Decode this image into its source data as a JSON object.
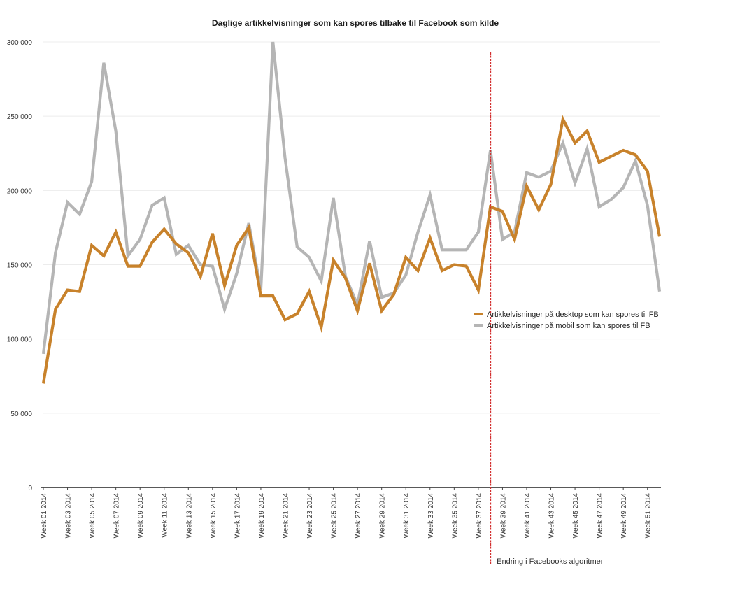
{
  "chart_data": {
    "type": "line",
    "title": "Daglige artikkelvisninger som kan spores tilbake til Facebook som kilde",
    "xlabel": "",
    "ylabel": "",
    "ylim": [
      0,
      300000
    ],
    "yticks": [
      0,
      50000,
      100000,
      150000,
      200000,
      250000,
      300000
    ],
    "ytick_labels": [
      "0",
      "50 000",
      "100 000",
      "150 000",
      "200 000",
      "250 000",
      "300 000"
    ],
    "x": [
      1,
      2,
      3,
      4,
      5,
      6,
      7,
      8,
      9,
      10,
      11,
      12,
      13,
      14,
      15,
      16,
      17,
      18,
      19,
      20,
      21,
      22,
      23,
      24,
      25,
      26,
      27,
      28,
      29,
      30,
      31,
      32,
      33,
      34,
      35,
      36,
      37,
      38,
      39,
      40,
      41,
      42,
      43,
      44,
      45,
      46,
      47,
      48,
      49,
      50,
      51,
      52
    ],
    "xtick_labels": [
      "Week 01 2014",
      "Week 03 2014",
      "Week 05 2014",
      "Week 07 2014",
      "Week 09 2014",
      "Week 11 2014",
      "Week 13 2014",
      "Week 15 2014",
      "Week 17 2014",
      "Week 19 2014",
      "Week 21 2014",
      "Week 23 2014",
      "Week 25 2014",
      "Week 27 2014",
      "Week 29 2014",
      "Week 31 2014",
      "Week 33 2014",
      "Week 35 2014",
      "Week 37 2014",
      "Week 39 2014",
      "Week 41 2014",
      "Week 43 2014",
      "Week 45 2014",
      "Week 47 2014",
      "Week 49 2014",
      "Week 51 2014"
    ],
    "xtick_weeks": [
      1,
      3,
      5,
      7,
      9,
      11,
      13,
      15,
      17,
      19,
      21,
      23,
      25,
      27,
      29,
      31,
      33,
      35,
      37,
      39,
      41,
      43,
      45,
      47,
      49,
      51
    ],
    "series": [
      {
        "name": "Artikkelvisninger på desktop som kan spores til FB",
        "color": "#c8822b",
        "values": [
          70000,
          120000,
          133000,
          132000,
          163000,
          156000,
          172000,
          149000,
          149000,
          165000,
          174000,
          164000,
          158000,
          142000,
          171000,
          136000,
          163000,
          175000,
          129000,
          129000,
          113000,
          117000,
          132000,
          108000,
          153000,
          141000,
          119000,
          151000,
          119000,
          130000,
          155000,
          146000,
          168000,
          146000,
          150000,
          149000,
          133000,
          189000,
          186000,
          167000,
          203000,
          187000,
          204000,
          248000,
          232000,
          240000,
          219000,
          223000,
          227000,
          224000,
          213000,
          169000
        ]
      },
      {
        "name": "Artikkelvisninger på mobil som kan spores til FB",
        "color": "#b5b5b5",
        "values": [
          90000,
          158000,
          192000,
          184000,
          206000,
          286000,
          240000,
          156000,
          167000,
          190000,
          195000,
          157000,
          163000,
          150000,
          149000,
          120000,
          144000,
          178000,
          133000,
          300000,
          222000,
          162000,
          155000,
          139000,
          195000,
          142000,
          123000,
          166000,
          128000,
          131000,
          143000,
          172000,
          197000,
          160000,
          160000,
          160000,
          172000,
          227000,
          167000,
          172000,
          212000,
          209000,
          213000,
          232000,
          205000,
          228000,
          189000,
          194000,
          202000,
          220000,
          190000,
          132000
        ]
      }
    ],
    "annotation": {
      "label": "Endring i Facebooks algoritmer",
      "x_week": 38.0,
      "color": "#d32f2f"
    },
    "legend_position": "right-middle",
    "grid": true
  }
}
